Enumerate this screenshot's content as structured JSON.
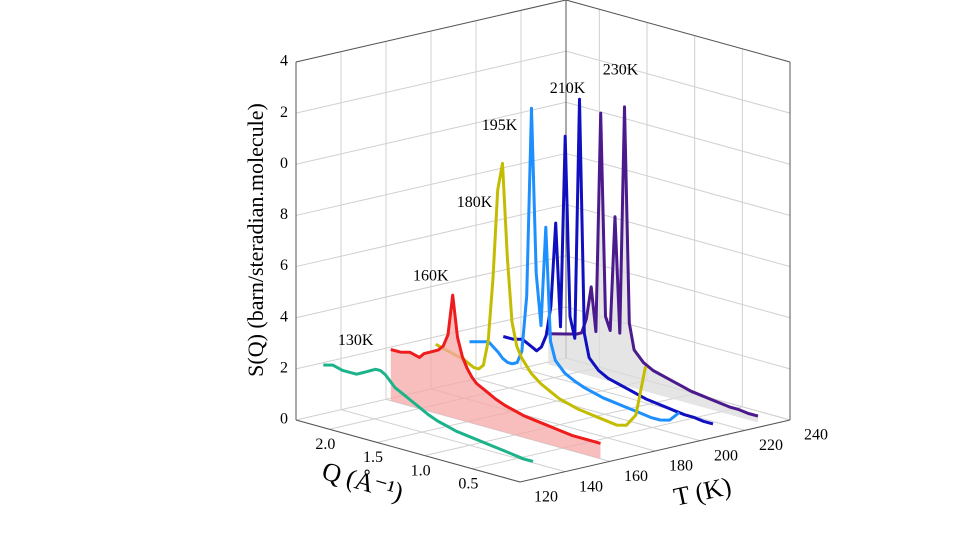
{
  "chart_data": {
    "type": "waterfall3d",
    "ylabel": "S(Q) (barn/steradian.molecule)",
    "xlabel": "Q (Å⁻¹)",
    "tlabel": "T (K)",
    "x": [
      2.3,
      2.2,
      2.1,
      2.0,
      1.95,
      1.9,
      1.85,
      1.8,
      1.75,
      1.7,
      1.65,
      1.6,
      1.55,
      1.5,
      1.45,
      1.4,
      1.3,
      1.2,
      1.1,
      1.0,
      0.9,
      0.8,
      0.7,
      0.6,
      0.5,
      0.4,
      0.3,
      0.2,
      0.1
    ],
    "xlim": [
      0,
      2.35
    ],
    "xticks": [
      {
        "value": 2,
        "label": "2.0"
      },
      1.5,
      {
        "value": 1,
        "label": "1.0"
      },
      0.5
    ],
    "tlim": [
      120,
      240
    ],
    "tticks": [
      120,
      140,
      160,
      180,
      200,
      220,
      240
    ],
    "ylim": [
      0,
      14
    ],
    "yticks": [
      0,
      2,
      4,
      6,
      8,
      {
        "value": 10,
        "label": "0"
      },
      {
        "value": 12,
        "label": "2"
      },
      {
        "value": 14,
        "label": "4"
      }
    ],
    "grid": true,
    "series": [
      {
        "name": "130K",
        "t": 130,
        "color": "#1db38a",
        "values": [
          2.0,
          2.1,
          2.0,
          2.0,
          2.0,
          2.1,
          2.2,
          2.3,
          2.4,
          2.4,
          2.3,
          2.1,
          1.9,
          1.8,
          1.7,
          1.6,
          1.4,
          1.2,
          1.05,
          0.95,
          0.85,
          0.8,
          0.75,
          0.7,
          0.65,
          0.6,
          0.55,
          0.5,
          0.5
        ]
      },
      {
        "name": "160K",
        "t": 160,
        "color": "#ee1c1c",
        "fill": "#f6a8a8",
        "values": [
          2.0,
          2.0,
          2.1,
          2.0,
          2.2,
          2.3,
          2.4,
          2.5,
          2.7,
          3.2,
          4.8,
          3.2,
          2.5,
          2.1,
          1.8,
          1.6,
          1.4,
          1.2,
          1.05,
          0.95,
          0.85,
          0.8,
          0.75,
          0.7,
          0.65,
          0.6,
          0.6,
          0.6,
          0.6
        ]
      },
      {
        "name": "180K",
        "t": 180,
        "color": "#c4bc00",
        "values": [
          1.8,
          1.7,
          1.6,
          1.5,
          1.4,
          1.3,
          1.3,
          1.5,
          2.5,
          5,
          8.5,
          9.6,
          6,
          3.5,
          2.6,
          2.2,
          1.7,
          1.4,
          1.2,
          1.0,
          0.9,
          0.8,
          0.75,
          0.7,
          0.65,
          0.6,
          0.7,
          1.2,
          3.2
        ]
      },
      {
        "name": "195K",
        "t": 195,
        "color": "#1e8fff",
        "values": [
          1.6,
          1.7,
          1.8,
          1.5,
          1.3,
          1.2,
          1.2,
          1.3,
          1.8,
          4,
          11.4,
          5,
          3,
          6.9,
          2.5,
          1.8,
          1.4,
          1.2,
          1.05,
          0.95,
          0.85,
          0.8,
          0.75,
          0.7,
          0.65,
          0.6,
          0.6,
          0.7,
          1.1
        ]
      },
      {
        "name": "210K",
        "t": 210,
        "color": "#1010c0",
        "values": [
          1.5,
          1.5,
          1.6,
          1.4,
          1.3,
          1.5,
          2.0,
          3.2,
          6.5,
          2.5,
          10,
          3,
          2.2,
          11.6,
          2.5,
          1.6,
          1.2,
          1.0,
          0.9,
          0.8,
          0.7,
          0.6,
          0.55,
          0.5,
          0.45,
          0.4,
          0.4,
          0.35,
          0.35
        ]
      },
      {
        "name": "230K",
        "t": 230,
        "color": "#4b1a8c",
        "fill": "#dcdcdc",
        "values": [
          1.2,
          1.3,
          1.4,
          1.5,
          1.6,
          2.2,
          3.5,
          1.8,
          10.4,
          2.5,
          2.0,
          6.5,
          2.0,
          10.9,
          2.5,
          1.5,
          1.1,
          0.9,
          0.8,
          0.7,
          0.6,
          0.5,
          0.45,
          0.4,
          0.35,
          0.3,
          0.3,
          0.25,
          0.25
        ]
      }
    ]
  }
}
